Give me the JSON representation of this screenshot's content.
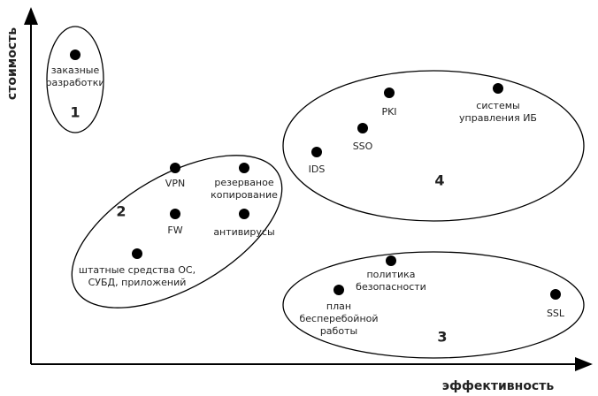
{
  "axes": {
    "y_label": "стоимость",
    "x_label": "эффективность"
  },
  "groups": [
    {
      "number": "1",
      "points": [
        {
          "label": [
            "заказные",
            "разработки"
          ]
        }
      ]
    },
    {
      "number": "2",
      "points": [
        {
          "label": [
            "VPN"
          ]
        },
        {
          "label": [
            "резерваное",
            "копирование"
          ]
        },
        {
          "label": [
            "FW"
          ]
        },
        {
          "label": [
            "антивирусы"
          ]
        },
        {
          "label": [
            "штатные средства ОС,",
            "СУБД, приложений"
          ]
        }
      ]
    },
    {
      "number": "3",
      "points": [
        {
          "label": [
            "политика",
            "безопасности"
          ]
        },
        {
          "label": [
            "план",
            "бесперебойной",
            "работы"
          ]
        },
        {
          "label": [
            "SSL"
          ]
        }
      ]
    },
    {
      "number": "4",
      "points": [
        {
          "label": [
            "PKI"
          ]
        },
        {
          "label": [
            "системы",
            "управления ИБ"
          ]
        },
        {
          "label": [
            "SSO"
          ]
        },
        {
          "label": [
            "IDS"
          ]
        }
      ]
    }
  ]
}
